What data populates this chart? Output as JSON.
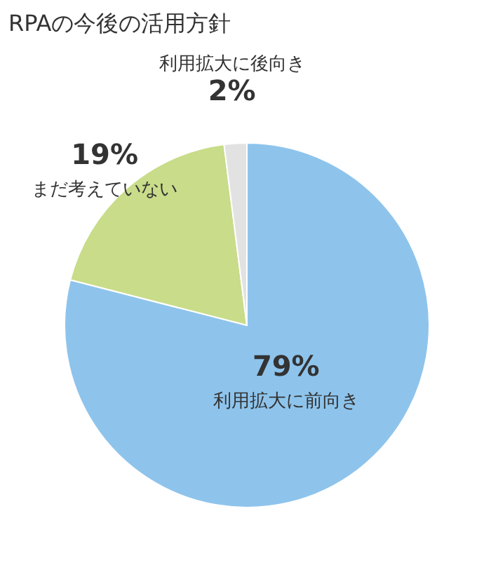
{
  "chart_data": {
    "type": "pie",
    "title": "RPAの今後の活用方針",
    "categories": [
      "利用拡大に前向き",
      "まだ考えていない",
      "利用拡大に後向き"
    ],
    "values": [
      79,
      19,
      2
    ],
    "colors": [
      "#8ec4ec",
      "#c8dc8a",
      "#e2e2e2"
    ],
    "value_labels": [
      "79%",
      "19%",
      "2%"
    ]
  }
}
